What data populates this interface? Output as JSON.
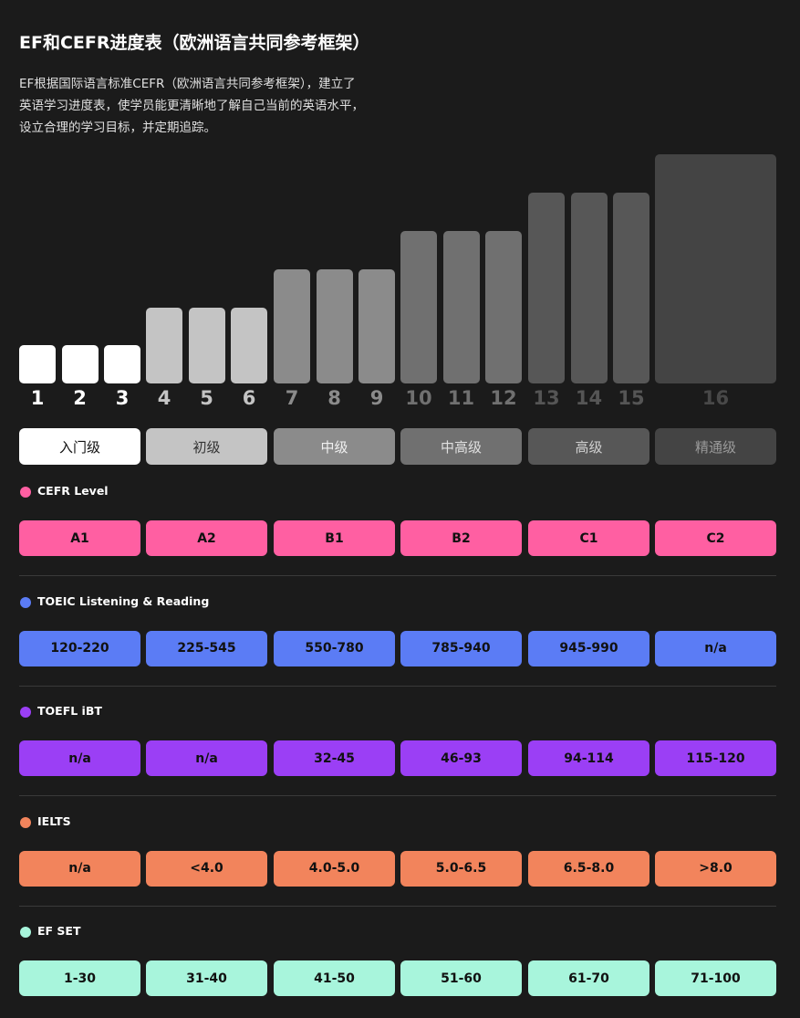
{
  "header": {
    "title": "EF和CEFR进度表（欧洲语言共同参考框架）",
    "description": [
      "EF根据国际语言标准CEFR（欧洲语言共同参考框架），建立了",
      "英语学习进度表，使学员能更清晰地了解自己当前的英语水平，",
      "设立合理的学习目标，并定期追踪。"
    ]
  },
  "groups": [
    {
      "label": "入门级",
      "levels": [
        "1",
        "2",
        "3"
      ]
    },
    {
      "label": "初级",
      "levels": [
        "4",
        "5",
        "6"
      ]
    },
    {
      "label": "中级",
      "levels": [
        "7",
        "8",
        "9"
      ]
    },
    {
      "label": "中高级",
      "levels": [
        "10",
        "11",
        "12"
      ]
    },
    {
      "label": "高级",
      "levels": [
        "13",
        "14",
        "15"
      ]
    },
    {
      "label": "精通级",
      "levels": [
        "16"
      ]
    }
  ],
  "sections": [
    {
      "name": "CEFR Level",
      "values": [
        "A1",
        "A2",
        "B1",
        "B2",
        "C1",
        "C2"
      ]
    },
    {
      "name": "TOEIC Listening & Reading",
      "values": [
        "120-220",
        "225-545",
        "550-780",
        "785-940",
        "945-990",
        "n/a"
      ]
    },
    {
      "name": "TOEFL iBT",
      "values": [
        "n/a",
        "n/a",
        "32-45",
        "46-93",
        "94-114",
        "115-120"
      ]
    },
    {
      "name": "IELTS",
      "values": [
        "n/a",
        "<4.0",
        "4.0-5.0",
        "5.0-6.5",
        "6.5-8.0",
        ">8.0"
      ]
    },
    {
      "name": "EF SET",
      "values": [
        "1-30",
        "31-40",
        "41-50",
        "51-60",
        "61-70",
        "71-100"
      ]
    }
  ]
}
